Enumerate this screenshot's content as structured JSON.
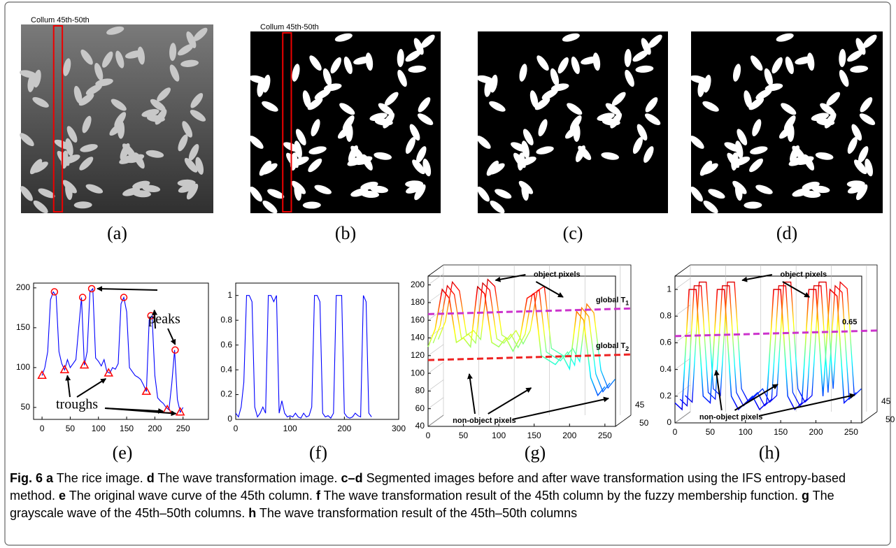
{
  "images": [
    {
      "label": "(a)",
      "annotation": "Collum 45th-50th"
    },
    {
      "label": "(b)",
      "annotation": "Collum 45th-50th"
    },
    {
      "label": "(c)"
    },
    {
      "label": "(d)"
    }
  ],
  "chart_data": [
    {
      "type": "line",
      "label": "(e)",
      "color": "#0000ff",
      "x": [
        0,
        5,
        10,
        15,
        20,
        25,
        30,
        35,
        40,
        45,
        50,
        55,
        60,
        65,
        70,
        75,
        80,
        85,
        90,
        95,
        100,
        105,
        110,
        115,
        120,
        125,
        130,
        135,
        140,
        145,
        150,
        155,
        160,
        165,
        170,
        175,
        180,
        185,
        190,
        195,
        200,
        205,
        210,
        215,
        220,
        225,
        230,
        235,
        240,
        245,
        250
      ],
      "values": [
        90,
        100,
        120,
        185,
        195,
        190,
        120,
        105,
        97,
        110,
        100,
        105,
        110,
        150,
        188,
        103,
        120,
        195,
        199,
        112,
        108,
        102,
        110,
        95,
        93,
        100,
        98,
        105,
        180,
        188,
        170,
        100,
        95,
        90,
        88,
        85,
        78,
        70,
        160,
        165,
        90,
        62,
        58,
        55,
        50,
        47,
        80,
        122,
        60,
        44,
        50
      ],
      "peaks": {
        "name": "peaks",
        "color": "#ff0000",
        "x": [
          22,
          72,
          88,
          145,
          193,
          236
        ],
        "y": [
          195,
          188,
          199,
          188,
          165,
          122
        ]
      },
      "troughs": {
        "name": "troughs",
        "color": "#ff0000",
        "x": [
          0,
          40,
          75,
          118,
          185,
          222,
          245
        ],
        "y": [
          90,
          97,
          103,
          93,
          70,
          47,
          44
        ]
      },
      "xlim": [
        -15,
        295
      ],
      "ylim": [
        35,
        206
      ],
      "xticks": [
        0,
        50,
        100,
        150,
        200,
        250
      ],
      "yticks": [
        50,
        100,
        150,
        200
      ]
    },
    {
      "type": "line",
      "label": "(f)",
      "color": "#0000ff",
      "x": [
        0,
        5,
        10,
        15,
        20,
        25,
        30,
        35,
        40,
        45,
        50,
        55,
        60,
        65,
        70,
        75,
        80,
        85,
        90,
        95,
        100,
        105,
        110,
        115,
        120,
        125,
        130,
        135,
        140,
        145,
        150,
        155,
        160,
        165,
        170,
        175,
        180,
        185,
        190,
        195,
        200,
        205,
        210,
        215,
        220,
        225,
        230,
        235,
        240,
        245,
        250
      ],
      "values": [
        0.05,
        0.02,
        0.1,
        0.3,
        1,
        1,
        0.95,
        0.1,
        0.02,
        0.05,
        0.1,
        0.05,
        1,
        1,
        0.95,
        1,
        0.05,
        0.15,
        0.05,
        0.02,
        0.03,
        0.02,
        0.05,
        0.02,
        0.01,
        0.05,
        0.02,
        0.03,
        0.1,
        1,
        1,
        0.95,
        0.05,
        0.02,
        0.03,
        0.01,
        0.05,
        1,
        1,
        1,
        0.05,
        0.02,
        0.01,
        0.02,
        0.05,
        0.03,
        0.02,
        1,
        0.95,
        0.05,
        0.02
      ],
      "xlim": [
        0,
        300
      ],
      "ylim": [
        0,
        1.1
      ],
      "xticks": [
        0,
        100,
        200,
        300
      ],
      "yticks": [
        0,
        0.2,
        0.4,
        0.6,
        0.8,
        1
      ]
    },
    {
      "type": "line3d",
      "label": "(g)",
      "colormap": "jet",
      "grid": true,
      "x": [
        0,
        10,
        20,
        30,
        40,
        50,
        60,
        70,
        80,
        90,
        100,
        110,
        120,
        130,
        140,
        150,
        160,
        170,
        180,
        190,
        200,
        210,
        220,
        230,
        240,
        250
      ],
      "values": [
        130,
        150,
        195,
        185,
        135,
        140,
        130,
        198,
        190,
        135,
        130,
        140,
        125,
        140,
        185,
        190,
        120,
        115,
        110,
        120,
        105,
        170,
        160,
        95,
        75,
        85
      ],
      "thresholds": [
        {
          "name": "global T",
          "subscript": "1",
          "value": 167,
          "color": "#cc33cc"
        },
        {
          "name": "global T",
          "subscript": "2",
          "value": 115,
          "color": "#ee2222"
        }
      ],
      "annotations": [
        "object pixels",
        "non-object pixels"
      ],
      "xlim": [
        0,
        265
      ],
      "ylim": [
        40,
        210
      ],
      "xticks": [
        0,
        50,
        100,
        150,
        200,
        250
      ],
      "yticks": [
        40,
        60,
        80,
        100,
        120,
        140,
        160,
        180,
        200
      ],
      "zticks": [
        45,
        50
      ]
    },
    {
      "type": "line3d",
      "label": "(h)",
      "colormap": "jet",
      "grid": true,
      "x": [
        0,
        10,
        20,
        30,
        40,
        50,
        60,
        70,
        80,
        90,
        100,
        110,
        120,
        130,
        140,
        150,
        160,
        170,
        180,
        190,
        200,
        210,
        220,
        230,
        240,
        250
      ],
      "values": [
        0.15,
        0.1,
        1,
        1,
        0.2,
        0.15,
        1,
        1,
        0.2,
        0.1,
        0.15,
        0.2,
        0.1,
        0.15,
        1,
        1,
        0.2,
        0.1,
        0.15,
        1,
        1,
        0.2,
        1,
        0.95,
        0.15,
        0.2
      ],
      "thresholds": [
        {
          "value": 0.65,
          "color": "#cc33cc"
        }
      ],
      "annotations": [
        "object pixels",
        "non-object pixels"
      ],
      "xlim": [
        0,
        265
      ],
      "ylim": [
        0,
        1.1
      ],
      "xticks": [
        0,
        50,
        100,
        150,
        200,
        250
      ],
      "yticks": [
        0,
        0.2,
        0.4,
        0.6,
        0.8,
        1
      ],
      "zticks": [
        45,
        50
      ]
    }
  ],
  "caption": [
    {
      "text": "Fig. 6 a",
      "bold": true
    },
    {
      "text": " The rice image. "
    },
    {
      "text": "d",
      "bold": true
    },
    {
      "text": " The wave transformation image. "
    },
    {
      "text": "c–d",
      "bold": true
    },
    {
      "text": " Segmented images before and after wave transformation using the IFS entropy-based method. "
    },
    {
      "text": "e",
      "bold": true
    },
    {
      "text": " The original wave curve of the 45th column. "
    },
    {
      "text": "f",
      "bold": true
    },
    {
      "text": " The wave transformation result of the 45th column by the fuzzy membership function. "
    },
    {
      "text": "g",
      "bold": true
    },
    {
      "text": " The grayscale wave of the 45th–50th columns. "
    },
    {
      "text": "h",
      "bold": true
    },
    {
      "text": " The wave transformation result of the 45th–50th columns"
    }
  ]
}
